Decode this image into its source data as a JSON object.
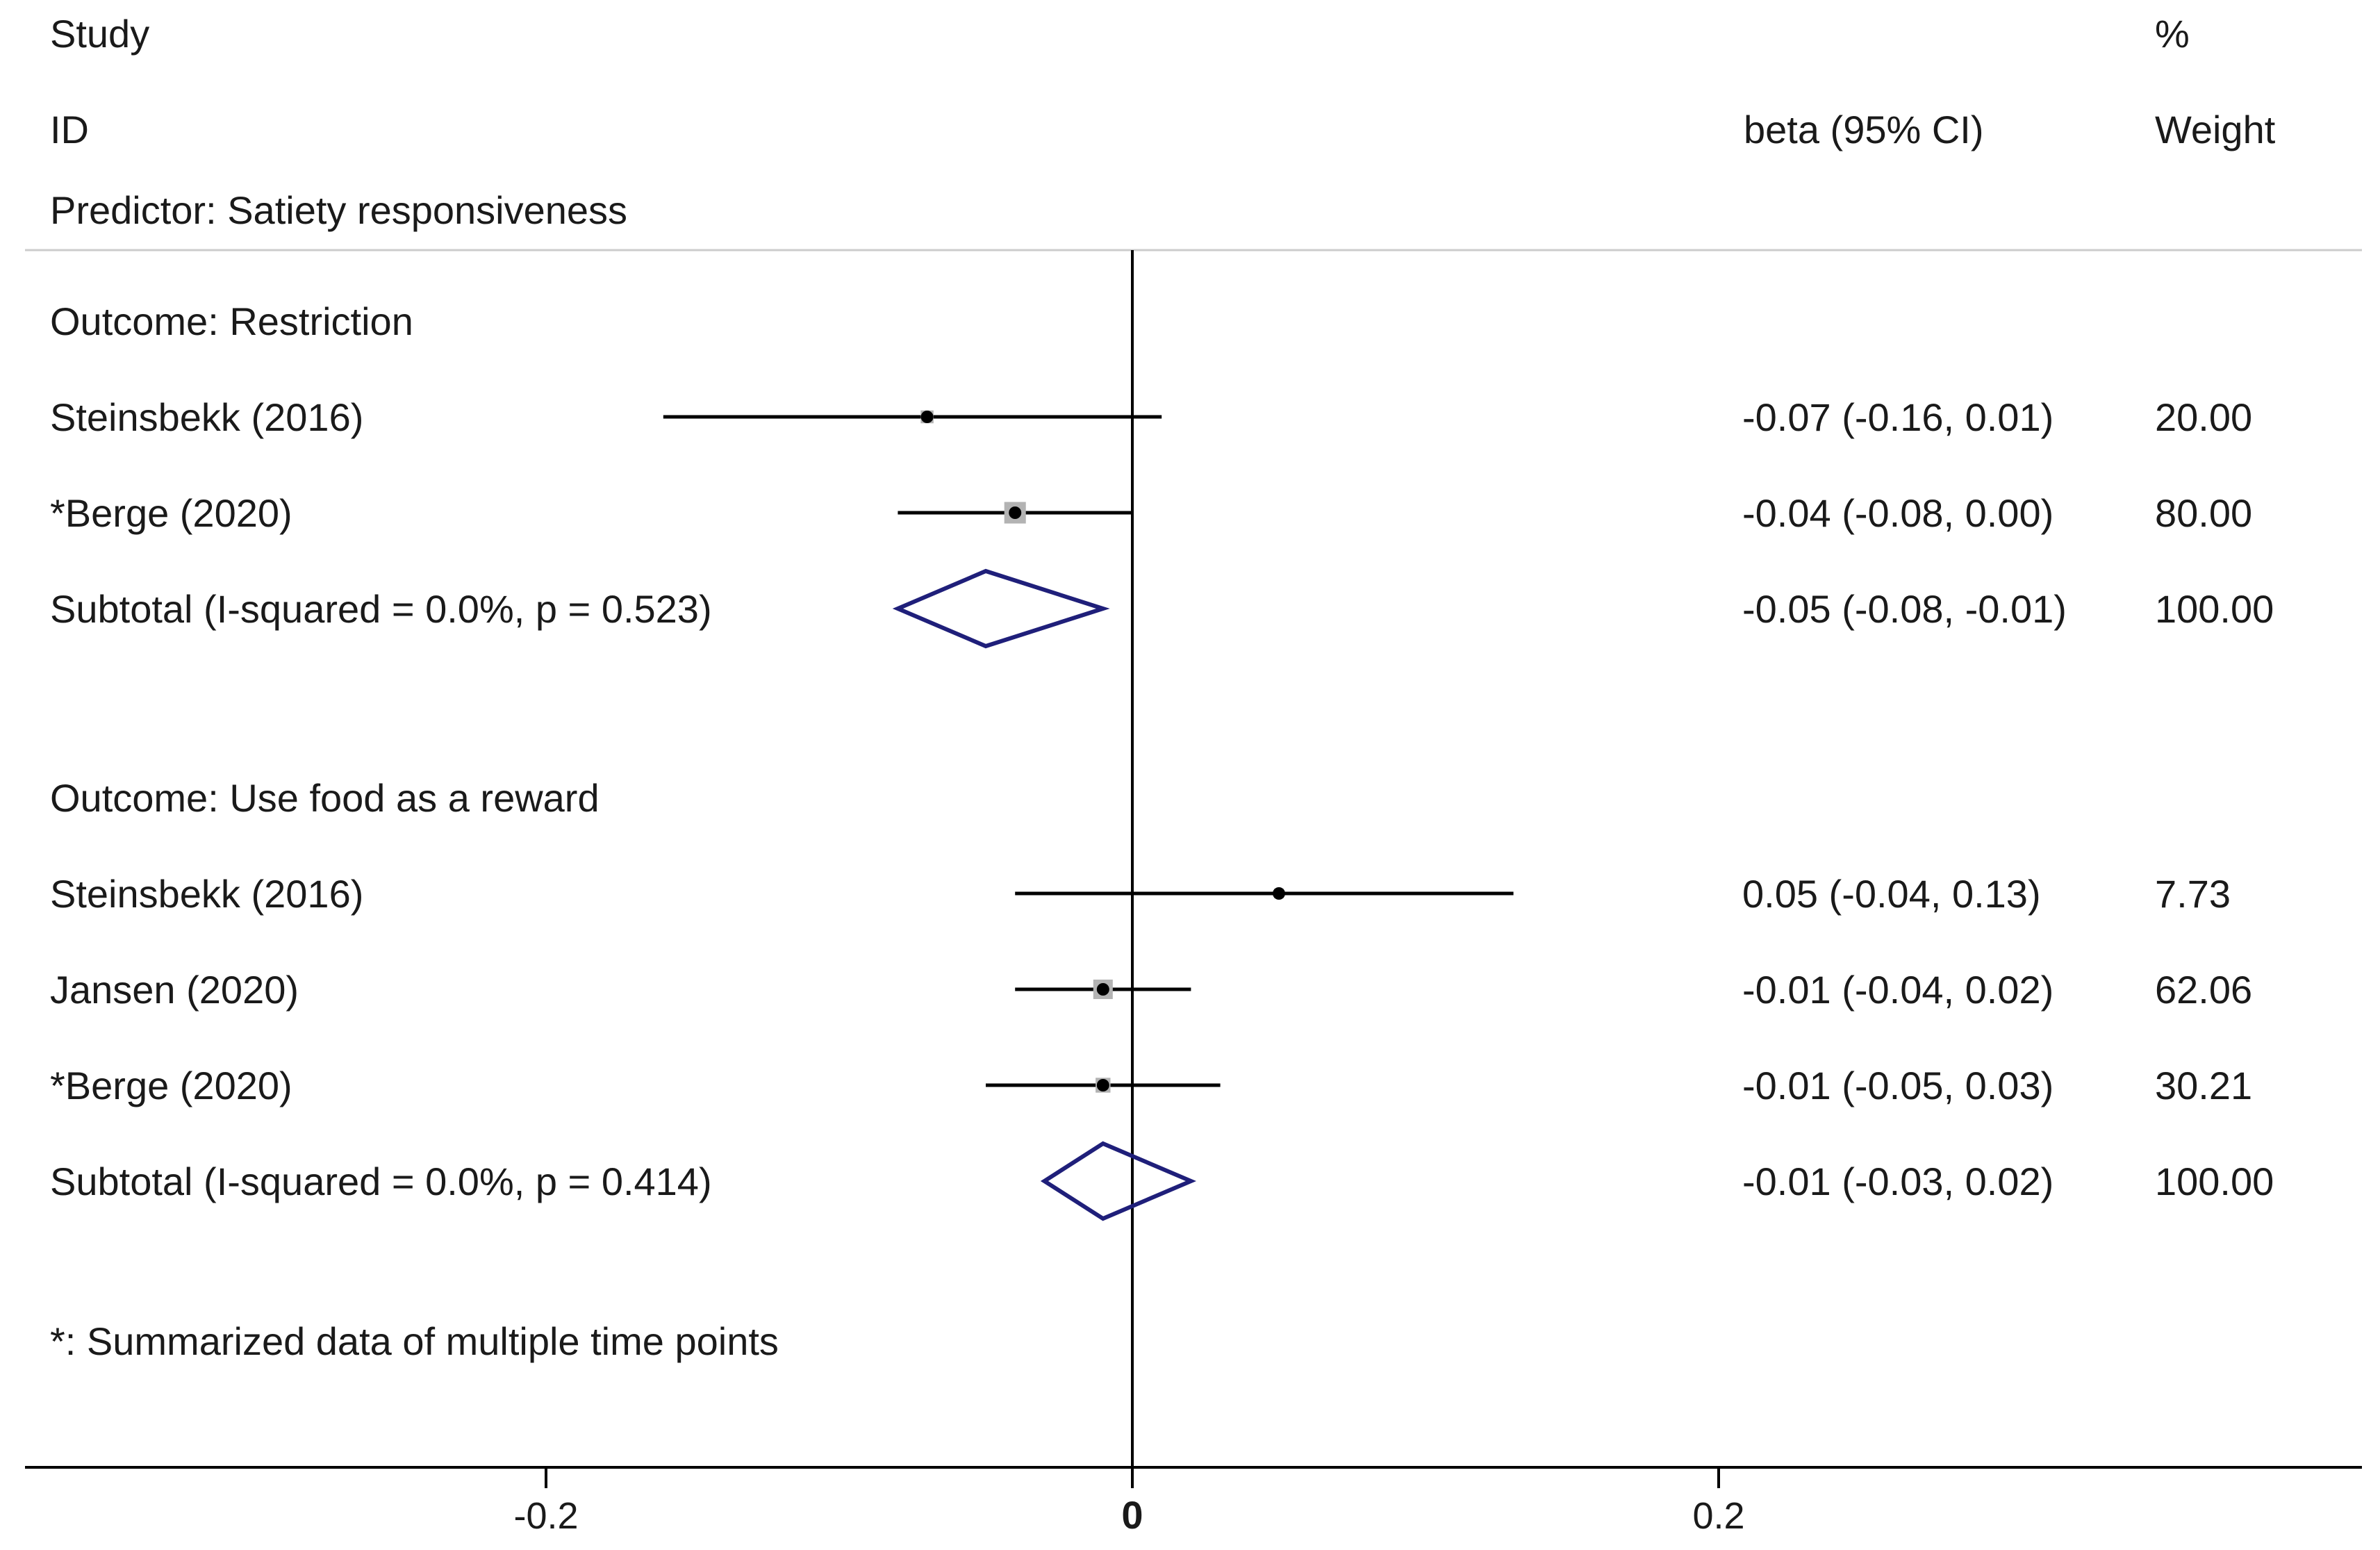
{
  "header": {
    "study": "Study",
    "id": "ID",
    "percent": "%",
    "effect": "beta (95% CI)",
    "weight": "Weight",
    "predictor": "Predictor: Satiety responsiveness"
  },
  "footnote": "*: Summarized data of multiple time points",
  "colors": {
    "text": "#1a1a1a",
    "line": "#000000",
    "diamond": "#1f1f7a",
    "box": "#b3b3b3",
    "separator": "#cccccc"
  },
  "chart_data": {
    "type": "forest",
    "xlim": [
      -0.38,
      0.42
    ],
    "xticks": [
      {
        "value": -0.2,
        "label": "-0.2"
      },
      {
        "value": 0,
        "label": "0"
      },
      {
        "value": 0.2,
        "label": "0.2"
      }
    ],
    "null_line": 0,
    "groups": [
      {
        "outcome": "Outcome: Restriction",
        "studies": [
          {
            "label": "Steinsbekk (2016)",
            "est": -0.07,
            "lo": -0.16,
            "hi": 0.01,
            "ci_text": "-0.07 (-0.16, 0.01)",
            "weight": "20.00",
            "weight_value": 20.0
          },
          {
            "label": "*Berge (2020)",
            "est": -0.04,
            "lo": -0.08,
            "hi": 0.0,
            "ci_text": "-0.04 (-0.08, 0.00)",
            "weight": "80.00",
            "weight_value": 80.0
          }
        ],
        "subtotal": {
          "label": "Subtotal  (I-squared = 0.0%, p = 0.523)",
          "est": -0.05,
          "lo": -0.08,
          "hi": -0.01,
          "ci_text": "-0.05 (-0.08, -0.01)",
          "weight": "100.00"
        }
      },
      {
        "outcome": "Outcome: Use food as a reward",
        "studies": [
          {
            "label": "Steinsbekk (2016)",
            "est": 0.05,
            "lo": -0.04,
            "hi": 0.13,
            "ci_text": "0.05 (-0.04, 0.13)",
            "weight": "7.73",
            "weight_value": 7.73
          },
          {
            "label": "Jansen (2020)",
            "est": -0.01,
            "lo": -0.04,
            "hi": 0.02,
            "ci_text": "-0.01 (-0.04, 0.02)",
            "weight": "62.06",
            "weight_value": 62.06
          },
          {
            "label": "*Berge (2020)",
            "est": -0.01,
            "lo": -0.05,
            "hi": 0.03,
            "ci_text": "-0.01 (-0.05, 0.03)",
            "weight": "30.21",
            "weight_value": 30.21
          }
        ],
        "subtotal": {
          "label": "Subtotal  (I-squared = 0.0%, p = 0.414)",
          "est": -0.01,
          "lo": -0.03,
          "hi": 0.02,
          "ci_text": "-0.01 (-0.03, 0.02)",
          "weight": "100.00"
        }
      }
    ]
  }
}
